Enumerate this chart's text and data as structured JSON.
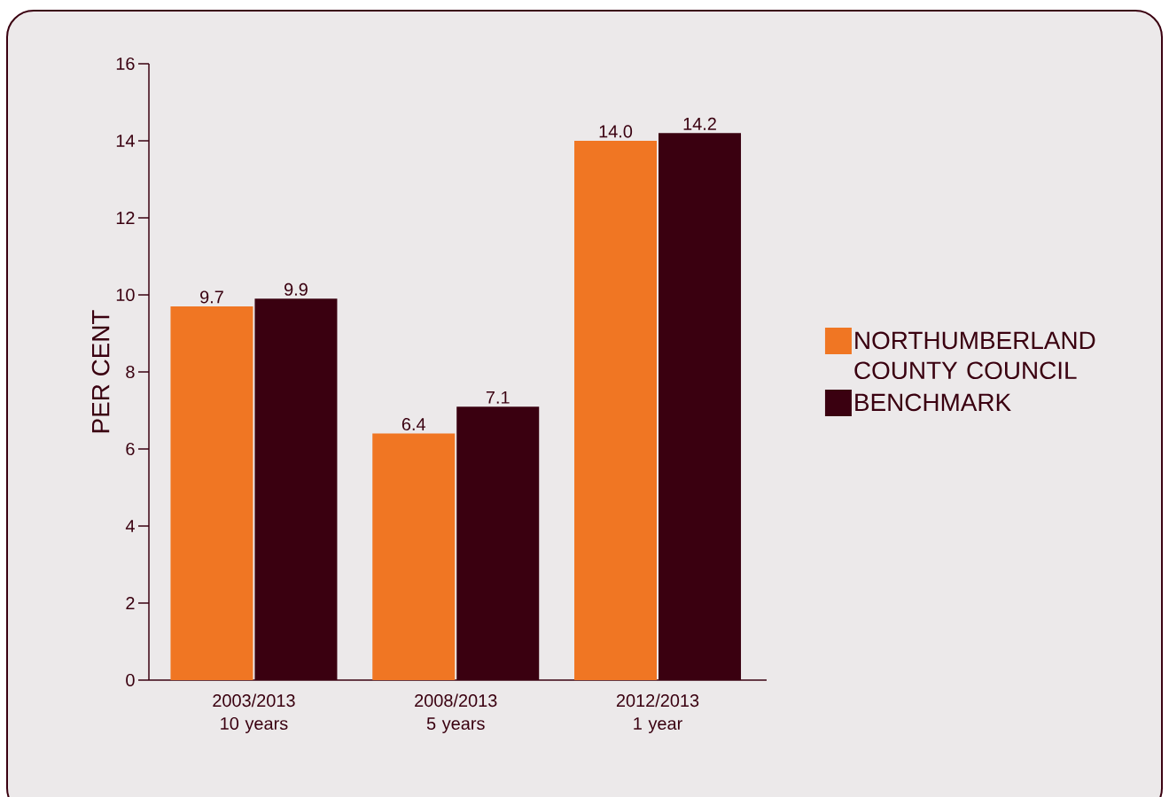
{
  "chart_data": {
    "type": "bar",
    "ylabel": "PER CENT",
    "categories": [
      "2003/2013 10 years",
      "2008/2013 5 years",
      "2012/2013 1 year"
    ],
    "series": [
      {
        "name": "NORTHUMBERLAND COUNTY COUNCIL",
        "color": "#f07623",
        "values": [
          9.7,
          6.4,
          14.0
        ],
        "value_labels": [
          "9.7",
          "6.4",
          "14.0"
        ]
      },
      {
        "name": "BENCHMARK",
        "color": "#3a0010",
        "values": [
          9.9,
          7.1,
          14.2
        ],
        "value_labels": [
          "9.9",
          "7.1",
          "14.2"
        ]
      }
    ],
    "ylim": [
      0,
      16
    ],
    "yticks": [
      0,
      2,
      4,
      6,
      8,
      10,
      12,
      14,
      16
    ],
    "legend": "right"
  }
}
